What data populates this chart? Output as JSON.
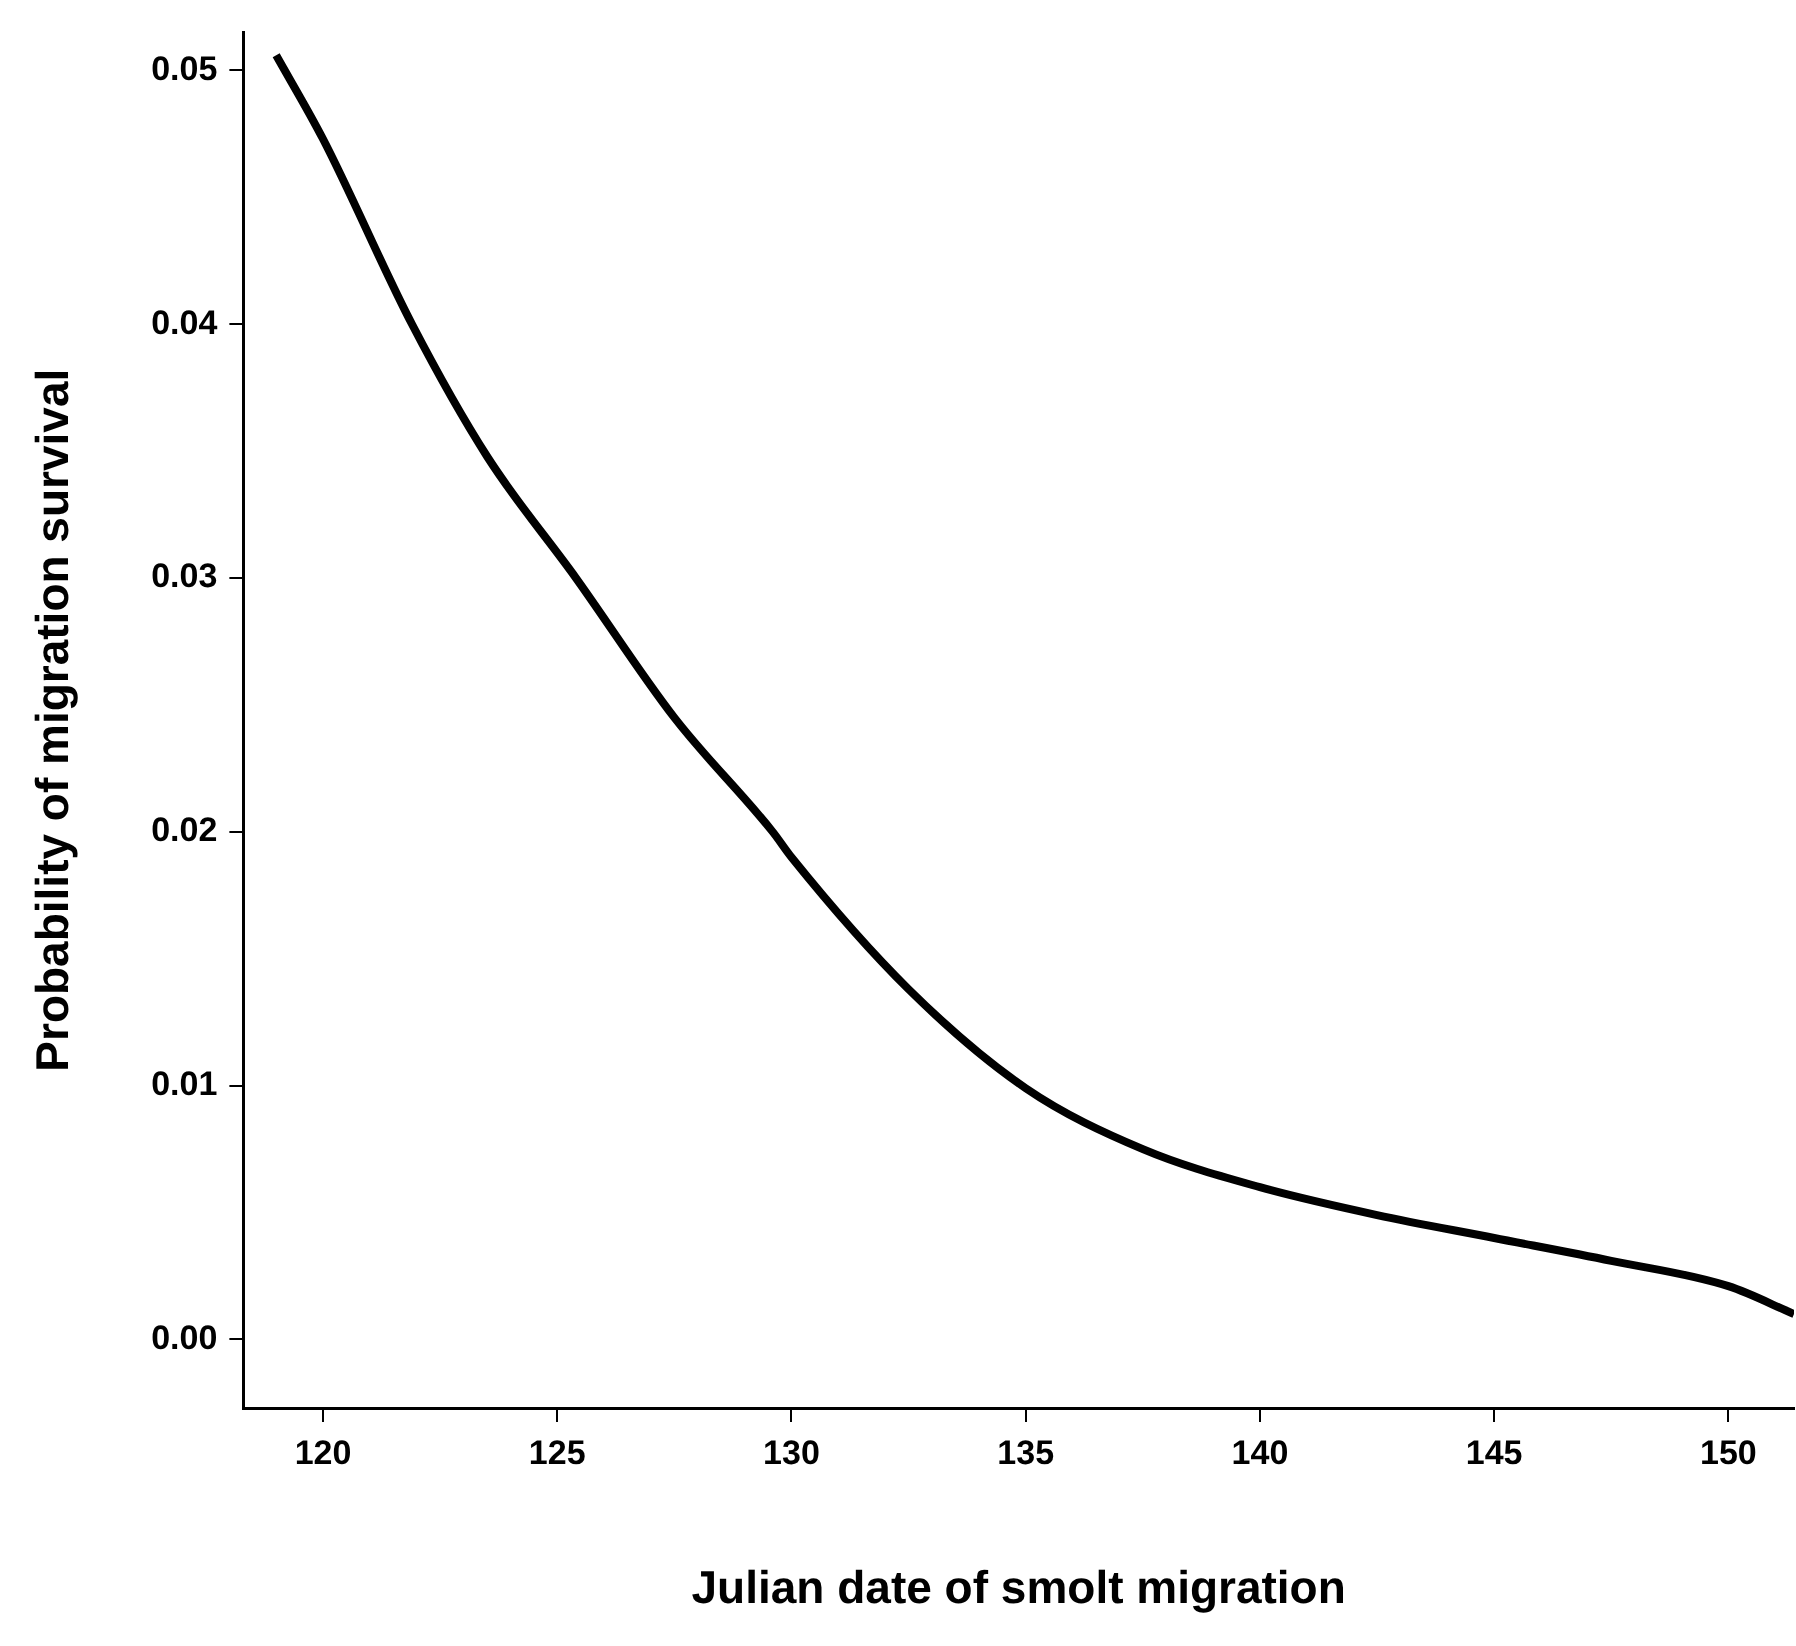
{
  "chart_data": {
    "type": "line",
    "xlabel": "Julian date of smolt migration",
    "ylabel": "Probability of migration survival",
    "x": [
      119,
      120,
      121.9,
      123.5,
      125.4,
      127.5,
      129.6,
      130,
      132.5,
      135,
      137.5,
      140,
      142.5,
      145,
      147.5,
      150,
      151.4
    ],
    "series": [
      {
        "color": "#000000",
        "values": [
          0.0506,
          0.0473,
          0.04,
          0.0348,
          0.03,
          0.0245,
          0.02,
          0.019,
          0.0138,
          0.0099,
          0.0075,
          0.006,
          0.0049,
          0.004,
          0.0031,
          0.0021,
          0.001
        ]
      }
    ],
    "xlim": [
      118.3,
      151.4
    ],
    "xticks": [
      120,
      125,
      130,
      135,
      140,
      145,
      150
    ],
    "ylim": [
      -0.0027,
      0.0515
    ],
    "yticks": [
      {
        "value": 0,
        "label": "0.00"
      },
      {
        "value": 0.01,
        "label": "0.01"
      },
      {
        "value": 0.02,
        "label": "0.02"
      },
      {
        "value": 0.03,
        "label": "0.03"
      },
      {
        "value": 0.04,
        "label": "0.04"
      },
      {
        "value": 0.05,
        "label": "0.05"
      }
    ],
    "grid": false,
    "legend": false,
    "marker": "none",
    "line_style": "solid"
  }
}
